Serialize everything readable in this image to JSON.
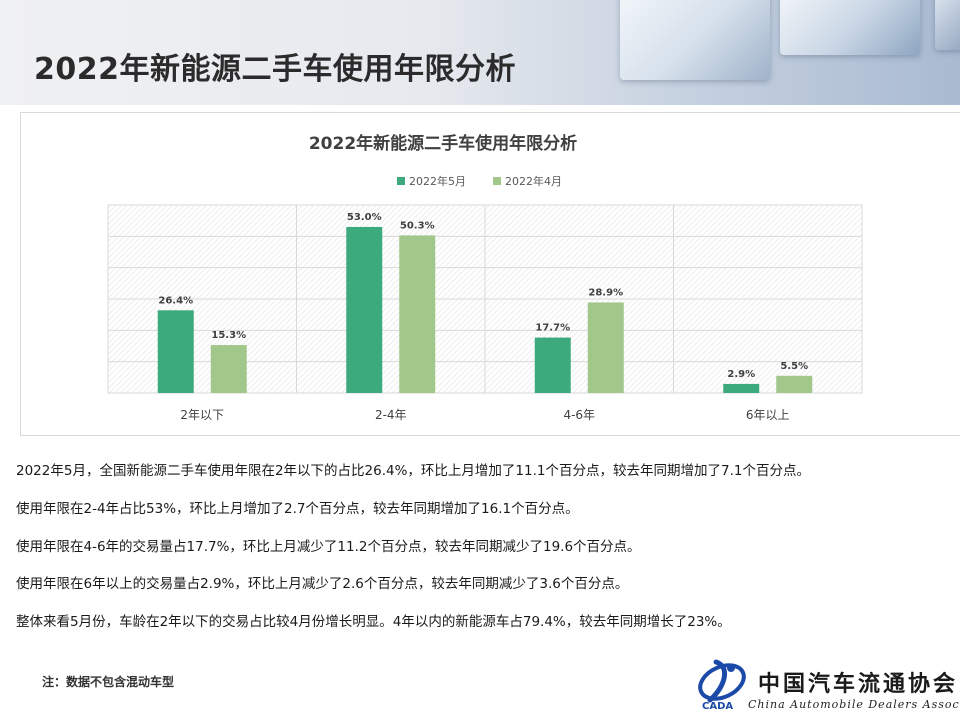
{
  "header": {
    "title": "2022年新能源二手车使用年限分析"
  },
  "chart_data": {
    "type": "bar",
    "title": "2022年新能源二手车使用年限分析",
    "categories": [
      "2年以下",
      "2-4年",
      "4-6年",
      "6年以上"
    ],
    "series": [
      {
        "name": "2022年5月",
        "values": [
          26.4,
          53.0,
          17.7,
          2.9
        ],
        "labels": [
          "26.4%",
          "53.0%",
          "17.7%",
          "2.9%"
        ],
        "color": "#3daa7d"
      },
      {
        "name": "2022年4月",
        "values": [
          15.3,
          50.3,
          28.9,
          5.5
        ],
        "labels": [
          "15.3%",
          "50.3%",
          "28.9%",
          "5.5%"
        ],
        "color": "#a2c78b"
      }
    ],
    "ylim": [
      0,
      60
    ],
    "legend_position": "top-center",
    "grid": true,
    "plot_background": "hatched"
  },
  "paragraphs": [
    "2022年5月，全国新能源二手车使用年限在2年以下的占比26.4%，环比上月增加了11.1个百分点，较去年同期增加了7.1个百分点。",
    "使用年限在2-4年占比53%，环比上月增加了2.7个百分点，较去年同期增加了16.1个百分点。",
    "使用年限在4-6年的交易量占17.7%，环比上月减少了11.2个百分点，较去年同期减少了19.6个百分点。",
    "使用年限在6年以上的交易量占2.9%，环比上月减少了2.6个百分点，较去年同期减少了3.6个百分点。",
    "整体来看5月份，车龄在2年以下的交易占比较4月份增长明显。4年以内的新能源车占79.4%，较去年同期增长了23%。"
  ],
  "footnote": "注：数据不包含混动车型",
  "logo": {
    "name": "中国汽车流通协会",
    "subtitle": "China Automobile Dealers Association",
    "mark_text": "CADA"
  }
}
